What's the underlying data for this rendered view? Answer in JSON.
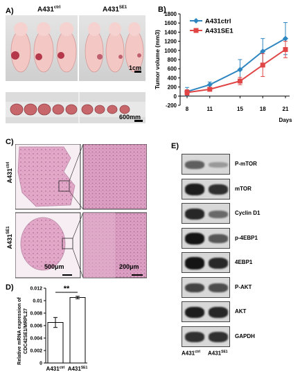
{
  "panelA": {
    "label": "A)",
    "group_ctrl": "A431",
    "group_ctrl_sup": "ctrl",
    "group_se1": "A431",
    "group_se1_sup": "SE1",
    "scale_top": "1cm",
    "scale_bottom": "600mm"
  },
  "panelB": {
    "label": "B)"
  },
  "panelC": {
    "label": "C)",
    "row1_name": "A431",
    "row1_sup": "ctrl",
    "row2_name": "A431",
    "row2_sup": "SE1",
    "scale_left": "500μm",
    "scale_right": "200μm"
  },
  "panelD": {
    "label": "D)",
    "significance": "**"
  },
  "panelE": {
    "label": "E)",
    "bands": [
      "P-mTOR",
      "mTOR",
      "Cyclin D1",
      "p-4EBP1",
      "4EBP1",
      "P-AKT",
      "AKT",
      "GAPDH"
    ],
    "lane1": "A431",
    "lane1_sup": "ctrl",
    "lane2": "A431",
    "lane2_sup": "SE1"
  },
  "chart_data": [
    {
      "type": "line",
      "title": "",
      "xlabel": "Days",
      "ylabel": "Tumor volume (mm3)",
      "x": [
        8,
        11,
        15,
        18,
        21
      ],
      "ylim": [
        -200,
        1800
      ],
      "yticks": [
        -200,
        0,
        200,
        400,
        600,
        800,
        1000,
        1200,
        1400,
        1600,
        1800
      ],
      "legend_position": "top-left",
      "series": [
        {
          "name": "A431ctrl",
          "color": "#2e86c1",
          "marker": "diamond",
          "values": [
            100,
            250,
            580,
            980,
            1260
          ],
          "errors": [
            90,
            60,
            220,
            280,
            350
          ]
        },
        {
          "name": "A431SE1",
          "color": "#e04646",
          "marker": "square",
          "values": [
            80,
            150,
            330,
            680,
            1020
          ],
          "errors": [
            60,
            40,
            80,
            250,
            180
          ]
        }
      ]
    },
    {
      "type": "bar",
      "title": "",
      "ylabel": "Relative mRNA expression of CDC42SE1/MRPL27",
      "categories": [
        "A431ctrl",
        "A431SE1"
      ],
      "category_labels": [
        {
          "name": "A431",
          "sup": "ctrl"
        },
        {
          "name": "A431",
          "sup": "SE1"
        }
      ],
      "values": [
        0.0065,
        0.0105
      ],
      "errors": [
        0.0008,
        0.0002
      ],
      "ylim": [
        0,
        0.012
      ],
      "yticks": [
        0,
        0.002,
        0.004,
        0.006,
        0.008,
        0.01,
        0.012
      ],
      "ytick_labels": [
        "0",
        "0.002",
        "0.004",
        "0.006",
        "0.008",
        "0.01",
        "0.012"
      ]
    }
  ]
}
